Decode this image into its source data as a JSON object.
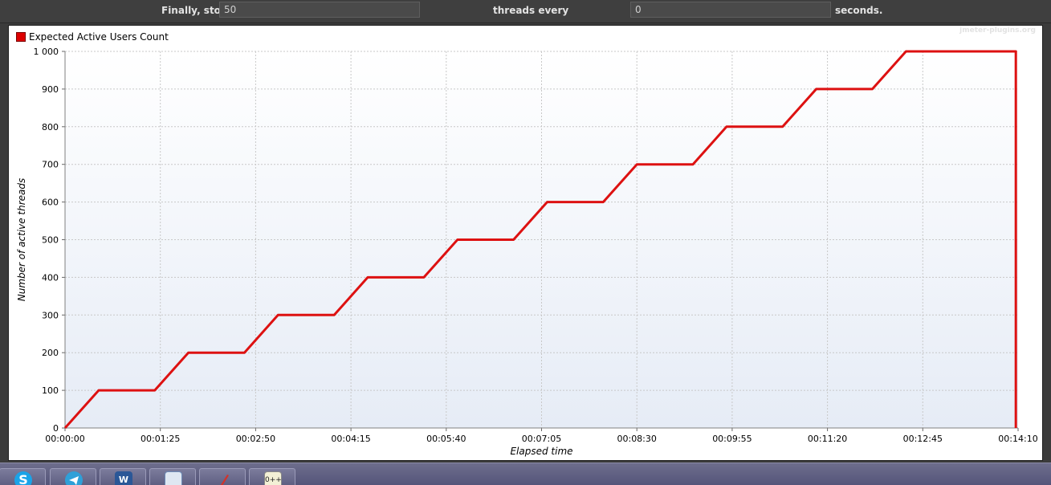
{
  "controls": {
    "finally_label": "Finally, stop",
    "finally_value": "50",
    "threads_label": "threads every",
    "threads_value": "0",
    "seconds_label": "seconds."
  },
  "watermark": "jmeter-plugins.org",
  "taskbar": {
    "apps": [
      {
        "name": "skype",
        "icon": "skype-icon"
      },
      {
        "name": "telegram",
        "icon": "telegram-icon"
      },
      {
        "name": "word",
        "icon": "word-icon",
        "text": "W"
      },
      {
        "name": "mail",
        "icon": "mail-icon"
      },
      {
        "name": "pen",
        "icon": "pen-icon"
      },
      {
        "name": "notepad",
        "icon": "notepad-plus-icon",
        "text": "0++"
      }
    ]
  },
  "colors": {
    "series": "#dd1111",
    "grid": "#c8c8c8",
    "plot_top": "#ffffff",
    "plot_bottom": "#e6ecf6"
  },
  "chart_data": {
    "type": "line",
    "title": "",
    "xlabel": "Elapsed time",
    "ylabel": "Number of active threads",
    "legend": "top-left",
    "grid": true,
    "xlim": [
      0,
      850
    ],
    "ylim": [
      0,
      1000
    ],
    "x_ticks": [
      {
        "value": 0,
        "label": "00:00:00"
      },
      {
        "value": 85,
        "label": "00:01:25"
      },
      {
        "value": 170,
        "label": "00:02:50"
      },
      {
        "value": 255,
        "label": "00:04:15"
      },
      {
        "value": 340,
        "label": "00:05:40"
      },
      {
        "value": 425,
        "label": "00:07:05"
      },
      {
        "value": 510,
        "label": "00:08:30"
      },
      {
        "value": 595,
        "label": "00:09:55"
      },
      {
        "value": 680,
        "label": "00:11:20"
      },
      {
        "value": 765,
        "label": "00:12:45"
      },
      {
        "value": 850,
        "label": "00:14:10"
      }
    ],
    "y_ticks": [
      {
        "value": 0,
        "label": "0"
      },
      {
        "value": 100,
        "label": "100"
      },
      {
        "value": 200,
        "label": "200"
      },
      {
        "value": 300,
        "label": "300"
      },
      {
        "value": 400,
        "label": "400"
      },
      {
        "value": 500,
        "label": "500"
      },
      {
        "value": 600,
        "label": "600"
      },
      {
        "value": 700,
        "label": "700"
      },
      {
        "value": 800,
        "label": "800"
      },
      {
        "value": 900,
        "label": "900"
      },
      {
        "value": 1000,
        "label": "1 000"
      }
    ],
    "series": [
      {
        "name": "Expected Active Users Count",
        "points": [
          [
            0,
            0
          ],
          [
            30,
            100
          ],
          [
            80,
            100
          ],
          [
            110,
            200
          ],
          [
            160,
            200
          ],
          [
            190,
            300
          ],
          [
            240,
            300
          ],
          [
            270,
            400
          ],
          [
            320,
            400
          ],
          [
            350,
            500
          ],
          [
            400,
            500
          ],
          [
            430,
            600
          ],
          [
            480,
            600
          ],
          [
            510,
            700
          ],
          [
            560,
            700
          ],
          [
            590,
            800
          ],
          [
            640,
            800
          ],
          [
            670,
            900
          ],
          [
            720,
            900
          ],
          [
            750,
            1000
          ],
          [
            848,
            1000
          ],
          [
            848,
            0
          ]
        ]
      }
    ]
  }
}
